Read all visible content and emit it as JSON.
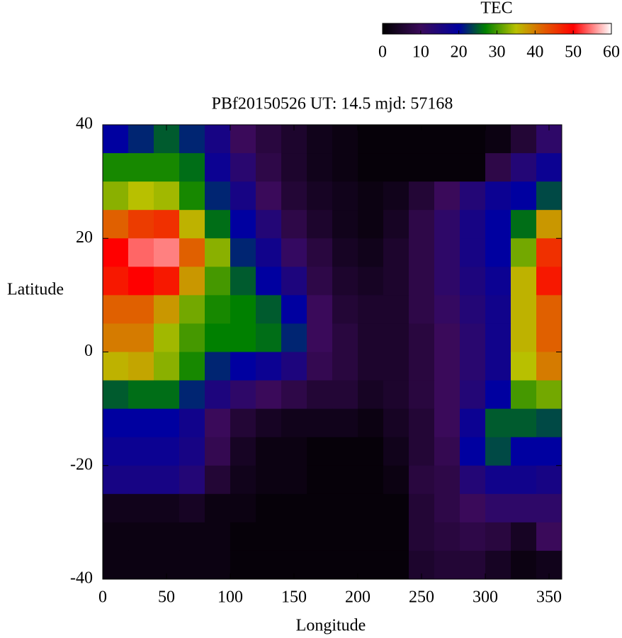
{
  "chart_data": {
    "type": "heatmap",
    "title": "PBf20150526  UT: 14.5  mjd: 57168",
    "x_label": "Longitude",
    "y_label": "Latitude",
    "xlim": [
      0,
      360
    ],
    "ylim": [
      -40,
      40
    ],
    "xticks": [
      0,
      50,
      100,
      150,
      200,
      250,
      300,
      350
    ],
    "yticks": [
      -40,
      -20,
      0,
      20,
      40
    ],
    "x": [
      10,
      30,
      50,
      70,
      90,
      110,
      130,
      150,
      170,
      190,
      210,
      230,
      250,
      270,
      290,
      310,
      330,
      350
    ],
    "y": [
      37.5,
      32.5,
      27.5,
      22.5,
      17.5,
      12.5,
      7.5,
      2.5,
      -2.5,
      -7.5,
      -12.5,
      -17.5,
      -22.5,
      -27.5,
      -32.5,
      -37.5
    ],
    "z": [
      [
        20,
        22,
        25,
        22,
        16,
        10,
        7,
        5,
        3,
        2,
        1,
        1,
        1,
        1,
        1,
        2,
        6,
        12
      ],
      [
        28,
        28,
        28,
        26,
        18,
        13,
        8,
        5,
        3,
        2,
        1,
        1,
        1,
        1,
        1,
        8,
        14,
        18
      ],
      [
        33,
        35,
        34,
        28,
        22,
        16,
        10,
        6,
        4,
        3,
        2,
        3,
        6,
        10,
        14,
        18,
        20,
        24
      ],
      [
        42,
        45,
        46,
        36,
        26,
        20,
        14,
        8,
        5,
        3,
        2,
        4,
        8,
        12,
        16,
        20,
        26,
        38
      ],
      [
        50,
        54,
        55,
        42,
        33,
        22,
        17,
        11,
        7,
        4,
        3,
        5,
        8,
        12,
        16,
        20,
        32,
        46
      ],
      [
        48,
        50,
        48,
        38,
        30,
        25,
        20,
        15,
        8,
        5,
        4,
        5,
        8,
        12,
        15,
        18,
        36,
        48
      ],
      [
        42,
        42,
        38,
        32,
        28,
        27,
        25,
        20,
        10,
        6,
        5,
        5,
        8,
        11,
        14,
        17,
        36,
        42
      ],
      [
        40,
        40,
        34,
        30,
        27,
        27,
        26,
        22,
        10,
        7,
        5,
        5,
        7,
        10,
        13,
        17,
        36,
        42
      ],
      [
        36,
        37,
        33,
        28,
        22,
        20,
        18,
        15,
        9,
        7,
        5,
        5,
        7,
        10,
        13,
        17,
        35,
        40
      ],
      [
        25,
        26,
        26,
        22,
        15,
        12,
        10,
        8,
        6,
        6,
        4,
        5,
        7,
        10,
        14,
        20,
        30,
        32
      ],
      [
        20,
        20,
        20,
        17,
        10,
        6,
        4,
        3,
        3,
        3,
        2,
        4,
        6,
        10,
        18,
        25,
        25,
        24
      ],
      [
        18,
        18,
        18,
        16,
        9,
        4,
        2,
        2,
        1,
        1,
        1,
        3,
        6,
        9,
        20,
        24,
        20,
        20
      ],
      [
        16,
        16,
        16,
        14,
        6,
        3,
        2,
        2,
        1,
        1,
        1,
        2,
        7,
        8,
        14,
        17,
        17,
        16
      ],
      [
        3,
        3,
        3,
        4,
        2,
        2,
        1,
        1,
        1,
        1,
        1,
        1,
        6,
        8,
        10,
        12,
        12,
        12
      ],
      [
        2,
        2,
        2,
        2,
        2,
        1,
        1,
        1,
        1,
        1,
        1,
        1,
        6,
        7,
        8,
        7,
        4,
        10
      ],
      [
        2,
        2,
        2,
        2,
        2,
        1,
        1,
        1,
        1,
        1,
        1,
        1,
        5,
        6,
        6,
        4,
        2,
        3
      ]
    ],
    "colorbar": {
      "label": "TEC",
      "lim": [
        0,
        60
      ],
      "ticks": [
        0,
        10,
        20,
        30,
        40,
        50,
        60
      ]
    },
    "colormap": [
      [
        0,
        "#000000"
      ],
      [
        10,
        "#3a0a5a"
      ],
      [
        20,
        "#0000a0"
      ],
      [
        27,
        "#008000"
      ],
      [
        35,
        "#b8c000"
      ],
      [
        42,
        "#e06000"
      ],
      [
        50,
        "#ff0000"
      ],
      [
        60,
        "#ffffff"
      ]
    ]
  }
}
